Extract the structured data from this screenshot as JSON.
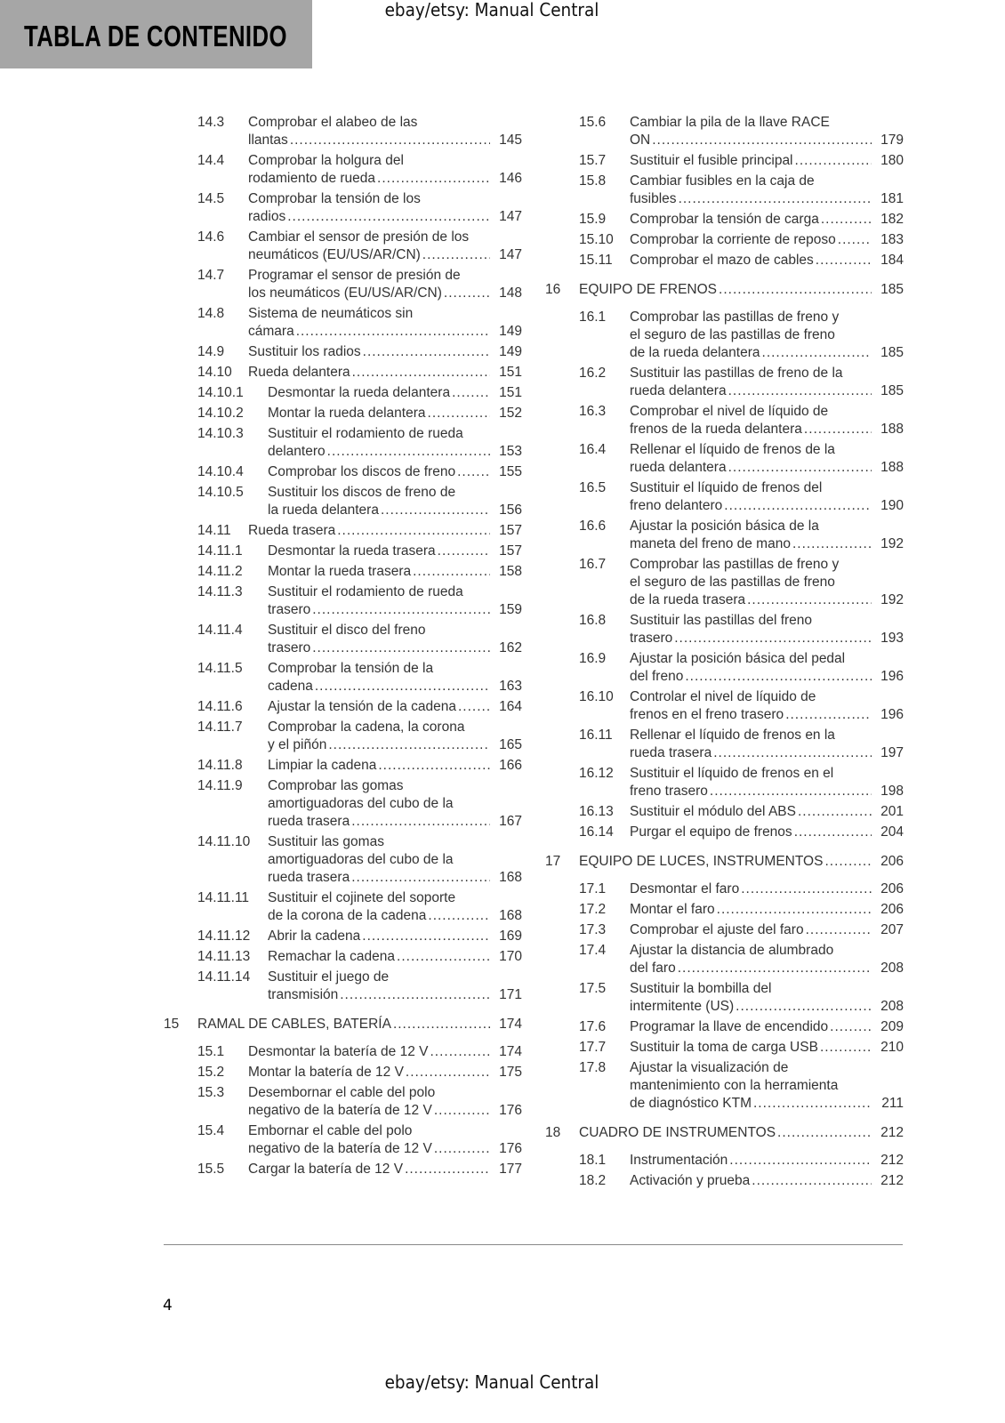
{
  "header": {
    "title": "TABLA DE CONTENIDO",
    "watermark_top": "ebay/etsy: Manual Central",
    "header_bg": "#a6a6a6"
  },
  "footer": {
    "page_number": "4",
    "watermark_bottom": "ebay/etsy: Manual Central"
  },
  "left_column": [
    {
      "level": 2,
      "num": "14.3",
      "lines": [
        "Comprobar el alabeo de las",
        "llantas"
      ],
      "page": "145"
    },
    {
      "level": 2,
      "num": "14.4",
      "lines": [
        "Comprobar la holgura del",
        "rodamiento de rueda"
      ],
      "page": "146"
    },
    {
      "level": 2,
      "num": "14.5",
      "lines": [
        "Comprobar la tensión de los",
        "radios"
      ],
      "page": "147"
    },
    {
      "level": 2,
      "num": "14.6",
      "lines": [
        "Cambiar el sensor de presión de los",
        "neumáticos (EU/US/AR/CN)"
      ],
      "page": "147"
    },
    {
      "level": 2,
      "num": "14.7",
      "lines": [
        "Programar el sensor de presión de",
        "los neumáticos (EU/US/AR/CN)"
      ],
      "page": "148"
    },
    {
      "level": 2,
      "num": "14.8",
      "lines": [
        "Sistema de neumáticos sin",
        "cámara"
      ],
      "page": "149"
    },
    {
      "level": 2,
      "num": "14.9",
      "lines": [
        "Sustituir los radios"
      ],
      "page": "149"
    },
    {
      "level": 2,
      "num": "14.10",
      "lines": [
        "Rueda delantera"
      ],
      "page": "151"
    },
    {
      "level": 3,
      "num": "14.10.1",
      "lines": [
        "Desmontar la rueda delantera"
      ],
      "page": "151"
    },
    {
      "level": 3,
      "num": "14.10.2",
      "lines": [
        "Montar la rueda delantera"
      ],
      "page": "152"
    },
    {
      "level": 3,
      "num": "14.10.3",
      "lines": [
        "Sustituir el rodamiento de rueda",
        "delantero"
      ],
      "page": "153"
    },
    {
      "level": 3,
      "num": "14.10.4",
      "lines": [
        "Comprobar los discos de freno"
      ],
      "page": "155"
    },
    {
      "level": 3,
      "num": "14.10.5",
      "lines": [
        "Sustituir los discos de freno de",
        "la rueda delantera"
      ],
      "page": "156"
    },
    {
      "level": 2,
      "num": "14.11",
      "lines": [
        "Rueda trasera"
      ],
      "page": "157"
    },
    {
      "level": 3,
      "num": "14.11.1",
      "lines": [
        "Desmontar la rueda trasera"
      ],
      "page": "157"
    },
    {
      "level": 3,
      "num": "14.11.2",
      "lines": [
        "Montar la rueda trasera"
      ],
      "page": "158"
    },
    {
      "level": 3,
      "num": "14.11.3",
      "lines": [
        "Sustituir el rodamiento de rueda",
        "trasero"
      ],
      "page": "159"
    },
    {
      "level": 3,
      "num": "14.11.4",
      "lines": [
        "Sustituir el disco del freno",
        "trasero"
      ],
      "page": "162"
    },
    {
      "level": 3,
      "num": "14.11.5",
      "lines": [
        "Comprobar la tensión de la",
        "cadena"
      ],
      "page": "163"
    },
    {
      "level": 3,
      "num": "14.11.6",
      "lines": [
        "Ajustar la tensión de la cadena"
      ],
      "page": "164"
    },
    {
      "level": 3,
      "num": "14.11.7",
      "lines": [
        "Comprobar la cadena, la corona",
        "y el piñón"
      ],
      "page": "165"
    },
    {
      "level": 3,
      "num": "14.11.8",
      "lines": [
        "Limpiar la cadena"
      ],
      "page": "166"
    },
    {
      "level": 3,
      "num": "14.11.9",
      "lines": [
        "Comprobar las gomas",
        "amortiguadoras del cubo de la",
        "rueda trasera"
      ],
      "page": "167"
    },
    {
      "level": 3,
      "num": "14.11.10",
      "lines": [
        "Sustituir las gomas",
        "amortiguadoras del cubo de la",
        "rueda trasera"
      ],
      "page": "168"
    },
    {
      "level": 3,
      "num": "14.11.11",
      "lines": [
        "Sustituir el cojinete del soporte",
        "de la corona de la cadena"
      ],
      "page": "168"
    },
    {
      "level": 3,
      "num": "14.11.12",
      "lines": [
        "Abrir la cadena"
      ],
      "page": "169"
    },
    {
      "level": 3,
      "num": "14.11.13",
      "lines": [
        "Remachar la cadena"
      ],
      "page": "170"
    },
    {
      "level": 3,
      "num": "14.11.14",
      "lines": [
        "Sustituir el juego de",
        "transmisión"
      ],
      "page": "171"
    },
    {
      "level": 1,
      "num": "15",
      "lines": [
        "RAMAL DE CABLES, BATERÍA"
      ],
      "page": "174"
    },
    {
      "level": 2,
      "num": "15.1",
      "lines": [
        "Desmontar la batería de 12 V"
      ],
      "page": "174"
    },
    {
      "level": 2,
      "num": "15.2",
      "lines": [
        "Montar la batería de 12 V"
      ],
      "page": "175"
    },
    {
      "level": 2,
      "num": "15.3",
      "lines": [
        "Desembornar el cable del polo",
        "negativo de la batería de 12 V"
      ],
      "page": "176"
    },
    {
      "level": 2,
      "num": "15.4",
      "lines": [
        "Embornar el cable del polo",
        "negativo de la batería de 12 V"
      ],
      "page": "176"
    },
    {
      "level": 2,
      "num": "15.5",
      "lines": [
        "Cargar la batería de 12 V"
      ],
      "page": "177"
    }
  ],
  "right_column": [
    {
      "level": 2,
      "num": "15.6",
      "lines": [
        "Cambiar la pila de la llave RACE",
        "ON"
      ],
      "page": "179"
    },
    {
      "level": 2,
      "num": "15.7",
      "lines": [
        "Sustituir el fusible principal"
      ],
      "page": "180"
    },
    {
      "level": 2,
      "num": "15.8",
      "lines": [
        "Cambiar fusibles en la caja de",
        "fusibles"
      ],
      "page": "181"
    },
    {
      "level": 2,
      "num": "15.9",
      "lines": [
        "Comprobar la tensión de carga"
      ],
      "page": "182"
    },
    {
      "level": 2,
      "num": "15.10",
      "lines": [
        "Comprobar la corriente de reposo"
      ],
      "page": "183"
    },
    {
      "level": 2,
      "num": "15.11",
      "lines": [
        "Comprobar el mazo de cables"
      ],
      "page": "184"
    },
    {
      "level": 1,
      "num": "16",
      "lines": [
        "EQUIPO DE FRENOS"
      ],
      "page": "185"
    },
    {
      "level": 2,
      "num": "16.1",
      "lines": [
        "Comprobar las pastillas de freno y",
        "el seguro de las pastillas de freno",
        "de la rueda delantera"
      ],
      "page": "185"
    },
    {
      "level": 2,
      "num": "16.2",
      "lines": [
        "Sustituir las pastillas de freno de la",
        "rueda delantera"
      ],
      "page": "185"
    },
    {
      "level": 2,
      "num": "16.3",
      "lines": [
        "Comprobar el nivel de líquido de",
        "frenos de la rueda delantera"
      ],
      "page": "188"
    },
    {
      "level": 2,
      "num": "16.4",
      "lines": [
        "Rellenar el líquido de frenos de la",
        "rueda delantera"
      ],
      "page": "188"
    },
    {
      "level": 2,
      "num": "16.5",
      "lines": [
        "Sustituir el líquido de frenos del",
        "freno delantero"
      ],
      "page": "190"
    },
    {
      "level": 2,
      "num": "16.6",
      "lines": [
        "Ajustar la posición básica de la",
        "maneta del freno de mano"
      ],
      "page": "192"
    },
    {
      "level": 2,
      "num": "16.7",
      "lines": [
        "Comprobar las pastillas de freno y",
        "el seguro de las pastillas de freno",
        "de la rueda trasera"
      ],
      "page": "192"
    },
    {
      "level": 2,
      "num": "16.8",
      "lines": [
        "Sustituir las pastillas del freno",
        "trasero"
      ],
      "page": "193"
    },
    {
      "level": 2,
      "num": "16.9",
      "lines": [
        "Ajustar la posición básica del pedal",
        "del freno"
      ],
      "page": "196"
    },
    {
      "level": 2,
      "num": "16.10",
      "lines": [
        "Controlar el nivel de líquido de",
        "frenos en el freno trasero"
      ],
      "page": "196"
    },
    {
      "level": 2,
      "num": "16.11",
      "lines": [
        "Rellenar el líquido de frenos en la",
        "rueda trasera"
      ],
      "page": "197"
    },
    {
      "level": 2,
      "num": "16.12",
      "lines": [
        "Sustituir el líquido de frenos en el",
        "freno trasero"
      ],
      "page": "198"
    },
    {
      "level": 2,
      "num": "16.13",
      "lines": [
        "Sustituir el módulo del ABS"
      ],
      "page": "201"
    },
    {
      "level": 2,
      "num": "16.14",
      "lines": [
        "Purgar el equipo de frenos"
      ],
      "page": "204"
    },
    {
      "level": 1,
      "num": "17",
      "lines": [
        "EQUIPO DE LUCES, INSTRUMENTOS"
      ],
      "page": "206"
    },
    {
      "level": 2,
      "num": "17.1",
      "lines": [
        "Desmontar el faro"
      ],
      "page": "206"
    },
    {
      "level": 2,
      "num": "17.2",
      "lines": [
        "Montar el faro"
      ],
      "page": "206"
    },
    {
      "level": 2,
      "num": "17.3",
      "lines": [
        "Comprobar el ajuste del faro"
      ],
      "page": "207"
    },
    {
      "level": 2,
      "num": "17.4",
      "lines": [
        "Ajustar la distancia de alumbrado",
        "del faro"
      ],
      "page": "208"
    },
    {
      "level": 2,
      "num": "17.5",
      "lines": [
        "Sustituir la bombilla del",
        "intermitente (US)"
      ],
      "page": "208"
    },
    {
      "level": 2,
      "num": "17.6",
      "lines": [
        "Programar la llave de encendido"
      ],
      "page": "209"
    },
    {
      "level": 2,
      "num": "17.7",
      "lines": [
        "Sustituir la toma de carga USB"
      ],
      "page": "210"
    },
    {
      "level": 2,
      "num": "17.8",
      "lines": [
        "Ajustar la visualización de",
        "mantenimiento con la herramienta",
        "de diagnóstico KTM"
      ],
      "page": "211"
    },
    {
      "level": 1,
      "num": "18",
      "lines": [
        "CUADRO DE INSTRUMENTOS"
      ],
      "page": "212"
    },
    {
      "level": 2,
      "num": "18.1",
      "lines": [
        "Instrumentación"
      ],
      "page": "212"
    },
    {
      "level": 2,
      "num": "18.2",
      "lines": [
        "Activación y prueba"
      ],
      "page": "212"
    }
  ]
}
